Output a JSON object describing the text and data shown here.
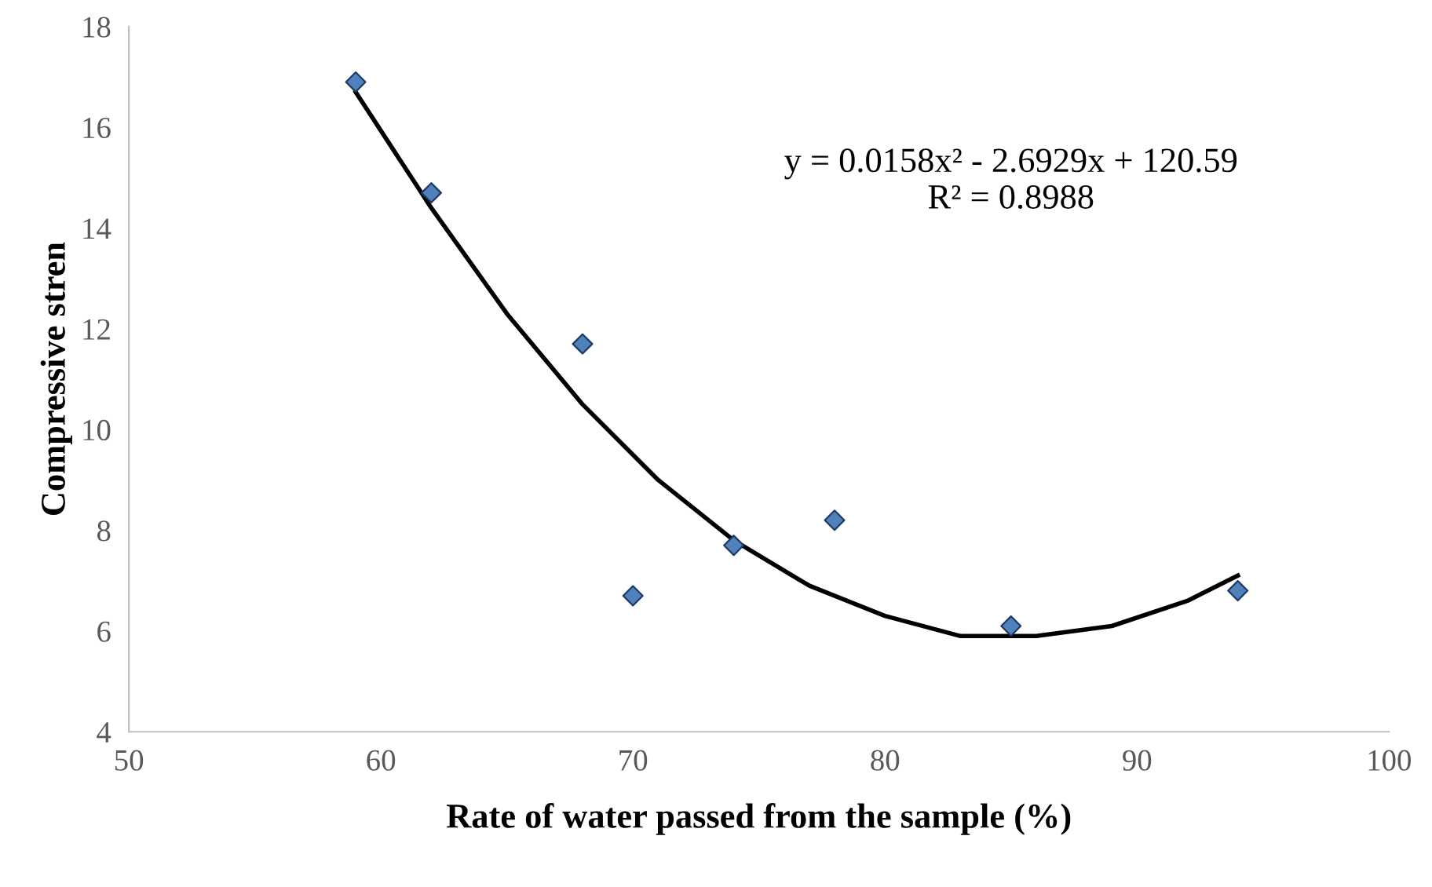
{
  "chart_data": {
    "type": "scatter",
    "xlabel": "Rate of water passed from the sample (%)",
    "ylabel": "Compressive stren",
    "series": [
      {
        "color": "#4f81bd",
        "x": [
          59,
          62,
          68,
          70,
          74,
          78,
          85,
          94
        ],
        "values": [
          16.9,
          14.7,
          11.7,
          6.7,
          7.7,
          8.2,
          6.1,
          6.8
        ],
        "marker": "diamond"
      },
      {
        "type": "line",
        "color": "#000000",
        "x": [
          59,
          62,
          65,
          68,
          71,
          74,
          77,
          80,
          83,
          86,
          89,
          92,
          94
        ],
        "values": [
          16.7,
          14.4,
          12.3,
          10.5,
          9.0,
          7.8,
          6.9,
          6.3,
          5.9,
          5.9,
          6.1,
          6.6,
          7.1
        ],
        "marker": "none",
        "line_style": "solid"
      }
    ],
    "annotations": [
      "y = 0.0158x² - 2.6929x + 120.59\nR² = 0.8988"
    ],
    "xlim": [
      50,
      100
    ],
    "xticks": [
      50,
      60,
      70,
      80,
      90,
      100
    ],
    "ylim": [
      4,
      18
    ],
    "yticks": [
      4,
      6,
      8,
      10,
      12,
      14,
      16,
      18
    ],
    "grid": false,
    "legend": false
  }
}
